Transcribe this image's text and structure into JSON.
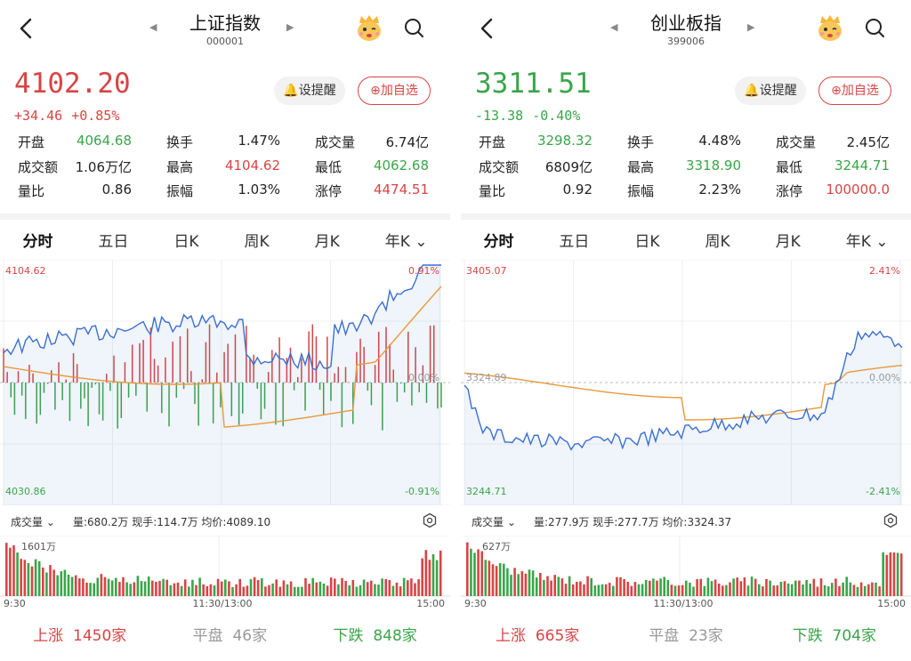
{
  "panels": [
    {
      "title": "上证指数",
      "code": "000001",
      "price": "4102.20",
      "change": "+34.46",
      "change_pct": "+0.85%",
      "trend": "up",
      "alarm_label": "设提醒",
      "add_label": "加自选",
      "stats": [
        [
          {
            "k": "开盘",
            "v": "4064.68",
            "c": "green"
          },
          {
            "k": "换手",
            "v": "1.47%",
            "c": ""
          },
          {
            "k": "成交量",
            "v": "6.74亿",
            "c": ""
          }
        ],
        [
          {
            "k": "成交额",
            "v": "1.06万亿",
            "c": ""
          },
          {
            "k": "最高",
            "v": "4104.62",
            "c": "red"
          },
          {
            "k": "最低",
            "v": "4062.68",
            "c": "green"
          }
        ],
        [
          {
            "k": "量比",
            "v": "0.86",
            "c": ""
          },
          {
            "k": "振幅",
            "v": "1.03%",
            "c": ""
          },
          {
            "k": "涨停",
            "v": "4474.51",
            "c": "red"
          }
        ]
      ],
      "tabs": [
        "分时",
        "五日",
        "日K",
        "周K",
        "月K",
        "年K"
      ],
      "chart": {
        "hi": "4104.62",
        "lo": "4030.86",
        "hi_pct": "0.91%",
        "lo_pct": "-0.91%",
        "mid_pct": "0.00%",
        "mid": "",
        "vol_label": "1601万",
        "vol_info": "量:680.2万  现手:114.7万  均价:4089.10"
      },
      "time_start": "9:30",
      "time_mid": "11:30/13:00",
      "time_end": "15:00",
      "vol_selector": "成交量",
      "footer": {
        "up_label": "上涨",
        "up": "1450家",
        "flat_label": "平盘",
        "flat": "46家",
        "down_label": "下跌",
        "down": "848家"
      }
    },
    {
      "title": "创业板指",
      "code": "399006",
      "price": "3311.51",
      "change": "-13.38",
      "change_pct": "-0.40%",
      "trend": "down",
      "alarm_label": "设提醒",
      "add_label": "加自选",
      "stats": [
        [
          {
            "k": "开盘",
            "v": "3298.32",
            "c": "green"
          },
          {
            "k": "换手",
            "v": "4.48%",
            "c": ""
          },
          {
            "k": "成交量",
            "v": "2.45亿",
            "c": ""
          }
        ],
        [
          {
            "k": "成交额",
            "v": "6809亿",
            "c": ""
          },
          {
            "k": "最高",
            "v": "3318.90",
            "c": "green"
          },
          {
            "k": "最低",
            "v": "3244.71",
            "c": "green"
          }
        ],
        [
          {
            "k": "量比",
            "v": "0.92",
            "c": ""
          },
          {
            "k": "振幅",
            "v": "2.23%",
            "c": ""
          },
          {
            "k": "涨停",
            "v": "100000.0",
            "c": "red"
          }
        ]
      ],
      "tabs": [
        "分时",
        "五日",
        "日K",
        "周K",
        "月K",
        "年K"
      ],
      "chart": {
        "hi": "3405.07",
        "lo": "3244.71",
        "hi_pct": "2.41%",
        "lo_pct": "-2.41%",
        "mid_pct": "0.00%",
        "mid": "3324.89",
        "vol_label": "627万",
        "vol_info": "量:277.9万  现手:277.7万  均价:3324.37"
      },
      "time_start": "9:30",
      "time_mid": "11:30/13:00",
      "time_end": "15:00",
      "vol_selector": "成交量",
      "footer": {
        "up_label": "上涨",
        "up": "665家",
        "flat_label": "平盘",
        "flat": "23家",
        "down_label": "下跌",
        "down": "704家"
      }
    }
  ],
  "colors": {
    "up": "#d94444",
    "down": "#3aa54a",
    "price_line": "#3b6fd1",
    "avg_line": "#e89a3c"
  }
}
